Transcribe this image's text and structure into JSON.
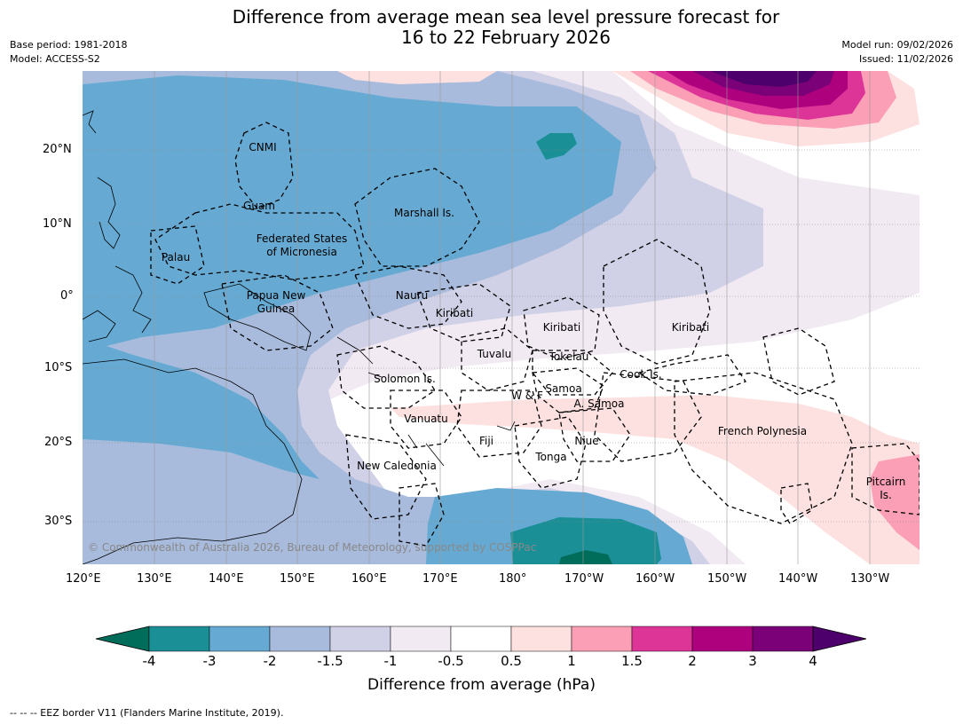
{
  "header": {
    "title_line1": "Difference from average mean sea level pressure forecast for",
    "title_line2": "16 to 22 February 2026",
    "base_period": "Base period: 1981-2018",
    "model": "Model: ACCESS-S2",
    "model_run": "Model run: 09/02/2026",
    "issued": "Issued: 11/02/2026"
  },
  "map": {
    "lat_labels": [
      "20°N",
      "10°N",
      "0°",
      "10°S",
      "20°S",
      "30°S"
    ],
    "lon_labels": [
      "120°E",
      "130°E",
      "140°E",
      "150°E",
      "160°E",
      "170°E",
      "180°",
      "170°W",
      "160°W",
      "150°W",
      "140°W",
      "130°W"
    ],
    "regions": [
      "CNMI",
      "Guam",
      "Marshall Is.",
      "Federated States",
      "of Micronesia",
      "Palau",
      "Papua New",
      "Guinea",
      "Nauru",
      "Kiribati",
      "Kiribati",
      "Kiribati",
      "Tuvalu",
      "Tokelau",
      "Solomon Is.",
      "Cook Is.",
      "Samoa",
      "W & F",
      "A. Samoa",
      "Vanuatu",
      "Fiji",
      "Niue",
      "Tonga",
      "French Polynesia",
      "New Caledonia",
      "Pitcairn",
      "Is."
    ],
    "copyright": "© Commonwealth of Australia 2026, Bureau of Meteorology, supported by COSPPac"
  },
  "colorbar": {
    "colors": [
      "#006c5a",
      "#1a8f96",
      "#66aad3",
      "#a8bbdc",
      "#d0d1e6",
      "#f2eaf3",
      "#ffffff",
      "#fde0e0",
      "#fa9fb5",
      "#dd3497",
      "#ae017e",
      "#7a0177",
      "#4d006b"
    ],
    "ticks": [
      "-4",
      "-3",
      "-2",
      "-1.5",
      "-1",
      "-0.5",
      "0.5",
      "1",
      "1.5",
      "2",
      "3",
      "4"
    ],
    "label": "Difference from average (hPa)"
  },
  "footer": {
    "legend": "--  --  -- EEZ border V11 (Flanders Marine Institute, 2019)."
  }
}
